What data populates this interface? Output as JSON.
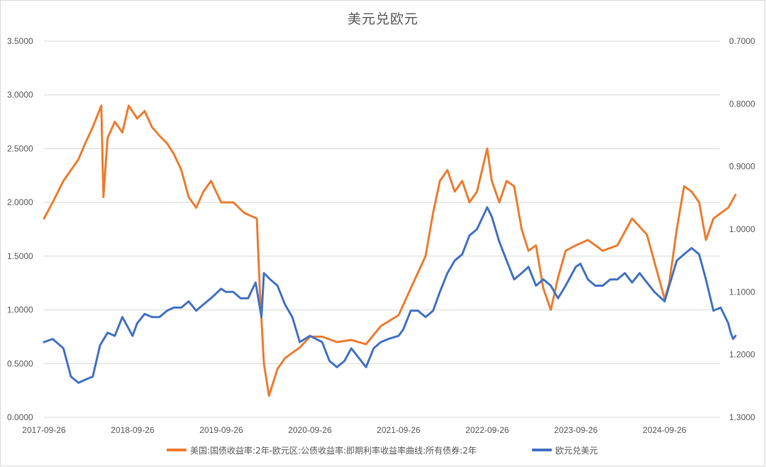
{
  "chart_data": {
    "type": "line",
    "title": "美元兑欧元",
    "x_tick_labels": [
      "2017-09-26",
      "2018-09-26",
      "2019-09-26",
      "2020-09-26",
      "2021-09-26",
      "2022-09-26",
      "2023-09-26",
      "2024-09-26"
    ],
    "y_left": {
      "ylim": [
        0,
        3.5
      ],
      "ticks": [
        "0.0000",
        "0.5000",
        "1.0000",
        "1.5000",
        "2.0000",
        "2.5000",
        "3.0000",
        "3.5000"
      ]
    },
    "y_right": {
      "ylim": [
        1.3,
        0.7
      ],
      "inverted": true,
      "ticks": [
        "0.7000",
        "0.8000",
        "0.9000",
        "1.0000",
        "1.1000",
        "1.2000",
        "1.3000"
      ]
    },
    "grid": true,
    "legend_position": "bottom",
    "series": [
      {
        "name": "美国:国债收益率:2年-欧元区:公债收益率:即期利率收益率曲线:所有债券:2年",
        "axis": "left",
        "color": "#ED7D31",
        "points": [
          [
            "2017-09-26",
            1.85
          ],
          [
            "2017-11-01",
            2.0
          ],
          [
            "2017-12-15",
            2.2
          ],
          [
            "2018-01-15",
            2.3
          ],
          [
            "2018-02-15",
            2.4
          ],
          [
            "2018-03-15",
            2.55
          ],
          [
            "2018-04-15",
            2.7
          ],
          [
            "2018-05-20",
            2.9
          ],
          [
            "2018-05-29",
            2.05
          ],
          [
            "2018-06-15",
            2.6
          ],
          [
            "2018-07-15",
            2.75
          ],
          [
            "2018-08-15",
            2.65
          ],
          [
            "2018-09-10",
            2.9
          ],
          [
            "2018-10-15",
            2.78
          ],
          [
            "2018-11-15",
            2.85
          ],
          [
            "2018-12-15",
            2.7
          ],
          [
            "2019-01-15",
            2.62
          ],
          [
            "2019-02-15",
            2.55
          ],
          [
            "2019-03-15",
            2.45
          ],
          [
            "2019-04-15",
            2.3
          ],
          [
            "2019-05-15",
            2.05
          ],
          [
            "2019-06-15",
            1.95
          ],
          [
            "2019-07-15",
            2.1
          ],
          [
            "2019-08-15",
            2.2
          ],
          [
            "2019-09-26",
            2.0
          ],
          [
            "2019-11-15",
            2.0
          ],
          [
            "2019-12-31",
            1.9
          ],
          [
            "2020-02-20",
            1.85
          ],
          [
            "2020-03-03",
            1.2
          ],
          [
            "2020-03-20",
            0.5
          ],
          [
            "2020-04-10",
            0.2
          ],
          [
            "2020-05-15",
            0.45
          ],
          [
            "2020-06-15",
            0.55
          ],
          [
            "2020-07-15",
            0.6
          ],
          [
            "2020-08-15",
            0.65
          ],
          [
            "2020-09-26",
            0.75
          ],
          [
            "2020-11-15",
            0.75
          ],
          [
            "2021-01-15",
            0.7
          ],
          [
            "2021-03-15",
            0.72
          ],
          [
            "2021-05-15",
            0.68
          ],
          [
            "2021-07-15",
            0.85
          ],
          [
            "2021-09-26",
            0.95
          ],
          [
            "2021-11-15",
            1.2
          ],
          [
            "2022-01-15",
            1.5
          ],
          [
            "2022-02-15",
            1.9
          ],
          [
            "2022-03-15",
            2.2
          ],
          [
            "2022-04-15",
            2.3
          ],
          [
            "2022-05-15",
            2.1
          ],
          [
            "2022-06-15",
            2.2
          ],
          [
            "2022-07-15",
            2.0
          ],
          [
            "2022-08-15",
            2.1
          ],
          [
            "2022-09-26",
            2.5
          ],
          [
            "2022-10-15",
            2.2
          ],
          [
            "2022-11-15",
            2.0
          ],
          [
            "2022-12-15",
            2.2
          ],
          [
            "2023-01-15",
            2.15
          ],
          [
            "2023-02-15",
            1.75
          ],
          [
            "2023-03-15",
            1.55
          ],
          [
            "2023-04-15",
            1.6
          ],
          [
            "2023-05-15",
            1.2
          ],
          [
            "2023-06-15",
            1.0
          ],
          [
            "2023-07-15",
            1.3
          ],
          [
            "2023-08-15",
            1.55
          ],
          [
            "2023-09-26",
            1.6
          ],
          [
            "2023-11-15",
            1.65
          ],
          [
            "2024-01-15",
            1.55
          ],
          [
            "2024-03-15",
            1.6
          ],
          [
            "2024-05-15",
            1.85
          ],
          [
            "2024-07-15",
            1.7
          ],
          [
            "2024-09-26",
            1.1
          ],
          [
            "2024-10-15",
            1.25
          ],
          [
            "2024-11-15",
            1.75
          ],
          [
            "2024-12-15",
            2.15
          ],
          [
            "2025-01-15",
            2.1
          ],
          [
            "2025-02-15",
            2.0
          ],
          [
            "2025-03-15",
            1.65
          ],
          [
            "2025-04-15",
            1.85
          ],
          [
            "2025-05-15",
            1.9
          ],
          [
            "2025-06-15",
            1.95
          ],
          [
            "2025-07-15",
            2.07
          ]
        ]
      },
      {
        "name": "欧元兑美元",
        "axis": "right",
        "color": "#4472C4",
        "points": [
          [
            "2017-09-26",
            1.18
          ],
          [
            "2017-11-01",
            1.175
          ],
          [
            "2017-12-15",
            1.19
          ],
          [
            "2018-01-15",
            1.235
          ],
          [
            "2018-02-15",
            1.245
          ],
          [
            "2018-03-15",
            1.24
          ],
          [
            "2018-04-15",
            1.235
          ],
          [
            "2018-05-15",
            1.185
          ],
          [
            "2018-06-15",
            1.165
          ],
          [
            "2018-07-15",
            1.17
          ],
          [
            "2018-08-15",
            1.14
          ],
          [
            "2018-09-26",
            1.17
          ],
          [
            "2018-10-15",
            1.15
          ],
          [
            "2018-11-15",
            1.135
          ],
          [
            "2018-12-15",
            1.14
          ],
          [
            "2019-01-15",
            1.14
          ],
          [
            "2019-02-15",
            1.13
          ],
          [
            "2019-03-15",
            1.125
          ],
          [
            "2019-04-15",
            1.125
          ],
          [
            "2019-05-15",
            1.115
          ],
          [
            "2019-06-15",
            1.13
          ],
          [
            "2019-07-15",
            1.12
          ],
          [
            "2019-08-15",
            1.11
          ],
          [
            "2019-09-26",
            1.095
          ],
          [
            "2019-10-15",
            1.1
          ],
          [
            "2019-11-15",
            1.1
          ],
          [
            "2019-12-15",
            1.11
          ],
          [
            "2020-01-15",
            1.11
          ],
          [
            "2020-02-15",
            1.085
          ],
          [
            "2020-03-10",
            1.14
          ],
          [
            "2020-03-20",
            1.07
          ],
          [
            "2020-04-15",
            1.08
          ],
          [
            "2020-05-15",
            1.09
          ],
          [
            "2020-06-15",
            1.12
          ],
          [
            "2020-07-15",
            1.14
          ],
          [
            "2020-08-15",
            1.18
          ],
          [
            "2020-09-26",
            1.17
          ],
          [
            "2020-11-15",
            1.18
          ],
          [
            "2020-12-15",
            1.21
          ],
          [
            "2021-01-15",
            1.22
          ],
          [
            "2021-02-15",
            1.21
          ],
          [
            "2021-03-15",
            1.19
          ],
          [
            "2021-05-15",
            1.22
          ],
          [
            "2021-06-15",
            1.19
          ],
          [
            "2021-07-15",
            1.18
          ],
          [
            "2021-08-15",
            1.175
          ],
          [
            "2021-09-26",
            1.17
          ],
          [
            "2021-10-15",
            1.16
          ],
          [
            "2021-11-15",
            1.13
          ],
          [
            "2021-12-15",
            1.13
          ],
          [
            "2022-01-15",
            1.14
          ],
          [
            "2022-02-15",
            1.13
          ],
          [
            "2022-03-15",
            1.1
          ],
          [
            "2022-04-15",
            1.07
          ],
          [
            "2022-05-15",
            1.05
          ],
          [
            "2022-06-15",
            1.04
          ],
          [
            "2022-07-15",
            1.01
          ],
          [
            "2022-08-15",
            1.0
          ],
          [
            "2022-09-26",
            0.965
          ],
          [
            "2022-10-15",
            0.98
          ],
          [
            "2022-11-15",
            1.02
          ],
          [
            "2022-12-15",
            1.05
          ],
          [
            "2023-01-15",
            1.08
          ],
          [
            "2023-02-15",
            1.07
          ],
          [
            "2023-03-15",
            1.06
          ],
          [
            "2023-04-15",
            1.09
          ],
          [
            "2023-05-15",
            1.08
          ],
          [
            "2023-06-15",
            1.09
          ],
          [
            "2023-07-15",
            1.11
          ],
          [
            "2023-08-15",
            1.09
          ],
          [
            "2023-09-26",
            1.06
          ],
          [
            "2023-10-15",
            1.055
          ],
          [
            "2023-11-15",
            1.08
          ],
          [
            "2023-12-15",
            1.09
          ],
          [
            "2024-01-15",
            1.09
          ],
          [
            "2024-02-15",
            1.08
          ],
          [
            "2024-03-15",
            1.08
          ],
          [
            "2024-04-15",
            1.07
          ],
          [
            "2024-05-15",
            1.085
          ],
          [
            "2024-06-15",
            1.07
          ],
          [
            "2024-07-15",
            1.085
          ],
          [
            "2024-08-15",
            1.1
          ],
          [
            "2024-09-26",
            1.115
          ],
          [
            "2024-10-15",
            1.09
          ],
          [
            "2024-11-15",
            1.05
          ],
          [
            "2024-12-15",
            1.04
          ],
          [
            "2025-01-15",
            1.03
          ],
          [
            "2025-02-15",
            1.04
          ],
          [
            "2025-03-15",
            1.08
          ],
          [
            "2025-04-15",
            1.13
          ],
          [
            "2025-05-15",
            1.125
          ],
          [
            "2025-06-15",
            1.15
          ],
          [
            "2025-06-25",
            1.165
          ],
          [
            "2025-07-05",
            1.175
          ],
          [
            "2025-07-15",
            1.17
          ]
        ]
      }
    ]
  }
}
